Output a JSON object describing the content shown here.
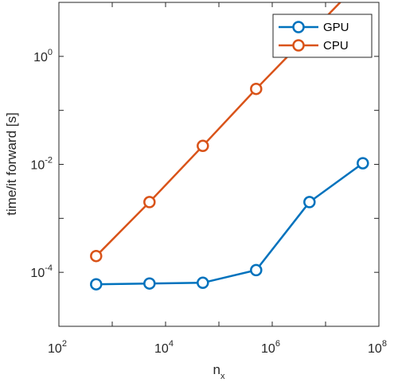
{
  "chart_data": {
    "type": "line",
    "xscale": "log",
    "yscale": "log",
    "xlabel": "n",
    "xlabel_subscript": "x",
    "ylabel": "time/it forward [s]",
    "xlim": [
      100,
      100000000
    ],
    "ylim": [
      1e-05,
      10
    ],
    "xticks": [
      {
        "base": "10",
        "exp": "2",
        "value": 100
      },
      {
        "base": "10",
        "exp": "4",
        "value": 10000
      },
      {
        "base": "10",
        "exp": "6",
        "value": 1000000
      },
      {
        "base": "10",
        "exp": "8",
        "value": 100000000
      }
    ],
    "yticks": [
      {
        "base": "10",
        "exp": "-4",
        "value": 0.0001
      },
      {
        "base": "10",
        "exp": "-2",
        "value": 0.01
      },
      {
        "base": "10",
        "exp": "0",
        "value": 1
      }
    ],
    "grid": false,
    "legend_position": "top-right",
    "series": [
      {
        "name": "GPU",
        "color": "#0072BD",
        "x": [
          500,
          5000,
          50000,
          500000,
          5000000,
          50000000
        ],
        "y": [
          6e-05,
          6.2e-05,
          6.4e-05,
          0.00011,
          0.002,
          0.0105
        ]
      },
      {
        "name": "CPU",
        "color": "#D95319",
        "x": [
          500,
          5000,
          50000,
          500000,
          5000000,
          50000000
        ],
        "y": [
          0.0002,
          0.002,
          0.022,
          0.25,
          2.6,
          27
        ]
      }
    ]
  }
}
